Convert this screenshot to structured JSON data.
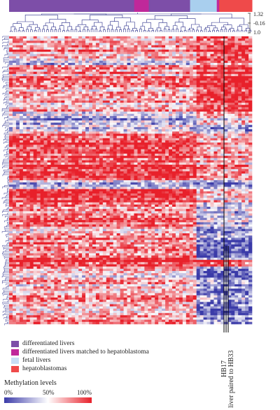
{
  "chart_data": {
    "type": "heatmap",
    "title": "",
    "xlabel": "",
    "ylabel": "",
    "groups": [
      {
        "name": "differentiated livers",
        "color": "#7d4ea8"
      },
      {
        "name": "differentiated livers matched to hepatoblastoma",
        "color": "#c0289a"
      },
      {
        "name": "fetal livers",
        "color": "#a9cfee"
      },
      {
        "name": "hepatoblastomas",
        "color": "#ef4a4a"
      }
    ],
    "group_bar": [
      {
        "group": "differentiated livers",
        "from": 0.0,
        "to": 0.515
      },
      {
        "group": "differentiated livers matched to hepatoblastoma",
        "from": 0.515,
        "to": 0.575
      },
      {
        "group": "differentiated livers",
        "from": 0.575,
        "to": 0.745
      },
      {
        "group": "fetal livers",
        "from": 0.745,
        "to": 0.855
      },
      {
        "group": "differentiated livers matched to hepatoblastoma",
        "from": 0.855,
        "to": 0.865
      },
      {
        "group": "hepatoblastomas",
        "from": 0.865,
        "to": 1.0
      }
    ],
    "dendrogram_scale": [
      "1.32",
      "-0.16",
      "1.0"
    ],
    "sample_labels": [
      "HB17",
      "liver paired to HB33"
    ],
    "colorbar": {
      "title": "Methylation levels",
      "ticks": [
        "0%",
        "50%",
        "100%"
      ],
      "low_color": "#3a3aa8",
      "mid_color": "#ffffff",
      "high_color": "#e8202a"
    }
  }
}
